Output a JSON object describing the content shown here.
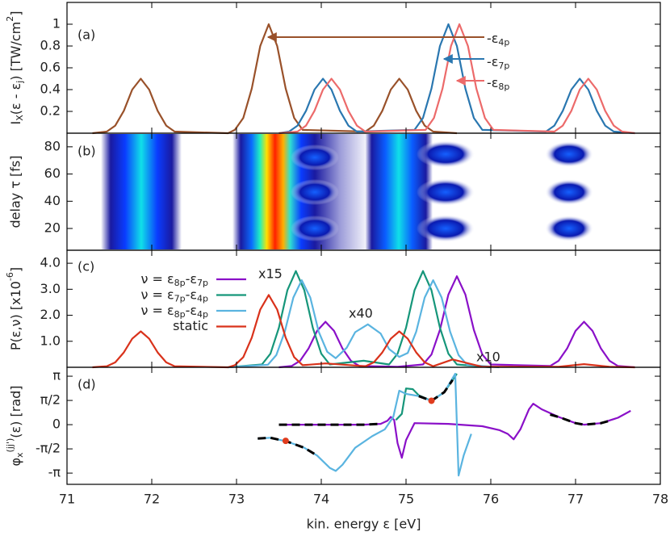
{
  "chart_data": [
    {
      "type": "line",
      "ylabel": [
        {
          "t": "I"
        },
        {
          "sub": "X"
        },
        {
          "t": "(ε - ε"
        },
        {
          "sub": "j"
        },
        {
          "t": ") [TW/cm"
        },
        {
          "sup": "2"
        },
        {
          "t": "]"
        }
      ],
      "xlim": [
        71,
        78
      ],
      "ylim": [
        0,
        1.2
      ],
      "yticks": [
        0.2,
        0.4,
        0.6,
        0.8,
        1
      ],
      "annotations": [
        {
          "text": "(a)",
          "color": "#222222"
        },
        {
          "text": [
            {
              "t": "-ε"
            },
            {
              "sub": "4p"
            }
          ],
          "color": "#99512a"
        },
        {
          "text": [
            {
              "t": "-ε"
            },
            {
              "sub": "7p"
            }
          ],
          "color": "#2a77b0"
        },
        {
          "text": [
            {
              "t": "-ε"
            },
            {
              "sub": "8p"
            }
          ],
          "color": "#ec6a6a"
        }
      ],
      "series": [
        {
          "color": "#99512a",
          "x": [
            71.3,
            71.47,
            71.57,
            71.67,
            71.77,
            71.87,
            71.97,
            72.07,
            72.17,
            72.27,
            72.9,
            72.98,
            73.08,
            73.18,
            73.28,
            73.38,
            73.48,
            73.58,
            73.68,
            73.78,
            74.52,
            74.62,
            74.72,
            74.82,
            74.92,
            75.02,
            75.12,
            75.22,
            75.32,
            75.6
          ],
          "values": [
            0,
            0.015,
            0.07,
            0.205,
            0.4,
            0.5,
            0.4,
            0.205,
            0.07,
            0.015,
            0,
            0.03,
            0.14,
            0.41,
            0.8,
            1,
            0.8,
            0.41,
            0.14,
            0.03,
            0.015,
            0.07,
            0.205,
            0.4,
            0.5,
            0.4,
            0.205,
            0.07,
            0.015,
            0
          ]
        },
        {
          "color": "#2a77b0",
          "x": [
            73.5,
            73.62,
            73.72,
            73.82,
            73.92,
            74.02,
            74.12,
            74.22,
            74.32,
            74.42,
            75.1,
            75.2,
            75.3,
            75.4,
            75.5,
            75.6,
            75.7,
            75.8,
            75.9,
            76.65,
            76.75,
            76.85,
            76.95,
            77.05,
            77.15,
            77.25,
            77.35,
            77.45,
            77.7
          ],
          "values": [
            0,
            0.015,
            0.07,
            0.205,
            0.4,
            0.5,
            0.4,
            0.205,
            0.07,
            0.015,
            0.03,
            0.14,
            0.41,
            0.8,
            1,
            0.8,
            0.41,
            0.14,
            0.03,
            0.015,
            0.07,
            0.205,
            0.4,
            0.5,
            0.4,
            0.205,
            0.07,
            0.015,
            0
          ]
        },
        {
          "color": "#ec6a6a",
          "x": [
            73.5,
            73.72,
            73.82,
            73.92,
            74.02,
            74.12,
            74.22,
            74.32,
            74.42,
            74.52,
            75.23,
            75.33,
            75.43,
            75.53,
            75.63,
            75.73,
            75.83,
            75.93,
            76.03,
            76.75,
            76.85,
            76.95,
            77.05,
            77.15,
            77.25,
            77.35,
            77.45,
            77.55,
            77.7
          ],
          "values": [
            0,
            0.015,
            0.07,
            0.205,
            0.4,
            0.5,
            0.4,
            0.205,
            0.07,
            0.015,
            0.03,
            0.14,
            0.41,
            0.8,
            1,
            0.8,
            0.41,
            0.14,
            0.03,
            0.015,
            0.07,
            0.205,
            0.4,
            0.5,
            0.4,
            0.205,
            0.07,
            0.015,
            0
          ]
        }
      ]
    },
    {
      "type": "heatmap",
      "ylabel": "delay τ [fs]",
      "xlim": [
        71,
        78
      ],
      "ylim": [
        4,
        90
      ],
      "yticks": [
        20,
        40,
        60,
        80
      ],
      "annotations": [
        {
          "text": "(b)",
          "color": "#222222"
        }
      ]
    },
    {
      "type": "line",
      "ylabel": [
        {
          "t": "P(ε,ν) [x10"
        },
        {
          "sup": "-6"
        },
        {
          "t": "]"
        }
      ],
      "xlim": [
        71,
        78
      ],
      "ylim": [
        0,
        4.5
      ],
      "yticks": [
        {
          "value": 1,
          "label": "1.0"
        },
        {
          "value": 2,
          "label": "2.0"
        },
        {
          "value": 3,
          "label": "3.0"
        },
        {
          "value": 4,
          "label": "4.0"
        }
      ],
      "legend": "upper left",
      "annotations": [
        {
          "text": "(c)",
          "color": "#222222"
        },
        {
          "text": "x15",
          "color": "#16967a"
        },
        {
          "text": "x40",
          "color": "#5ab4e0"
        },
        {
          "text": "x10",
          "color": "#8a10c8"
        }
      ],
      "series": [
        {
          "name": [
            {
              "t": "ν = ε"
            },
            {
              "sub": "8p"
            },
            {
              "t": "-ε"
            },
            {
              "sub": "7p"
            }
          ],
          "color": "#8a10c8",
          "x": [
            73.5,
            73.65,
            73.75,
            73.85,
            73.95,
            74.05,
            74.15,
            74.25,
            74.35,
            74.45,
            74.9,
            75.2,
            75.3,
            75.4,
            75.5,
            75.6,
            75.7,
            75.8,
            75.9,
            76.0,
            76.7,
            76.8,
            76.9,
            77.0,
            77.1,
            77.2,
            77.3,
            77.4,
            77.5,
            77.7
          ],
          "values": [
            0,
            0.05,
            0.25,
            0.72,
            1.4,
            1.75,
            1.4,
            0.72,
            0.25,
            0.05,
            0.02,
            0.11,
            0.49,
            1.44,
            2.8,
            3.5,
            2.8,
            1.44,
            0.49,
            0.11,
            0.05,
            0.25,
            0.72,
            1.4,
            1.75,
            1.4,
            0.72,
            0.25,
            0.05,
            0
          ]
        },
        {
          "name": [
            {
              "t": "ν = ε"
            },
            {
              "sub": "7p"
            },
            {
              "t": "-ε"
            },
            {
              "sub": "4p"
            }
          ],
          "color": "#16967a",
          "x": [
            72.9,
            73.3,
            73.4,
            73.5,
            73.6,
            73.7,
            73.8,
            73.9,
            74.0,
            74.1,
            74.5,
            74.8,
            74.9,
            75.0,
            75.1,
            75.2,
            75.3,
            75.4,
            75.5,
            75.6,
            76.0
          ],
          "values": [
            0,
            0.11,
            0.52,
            1.52,
            2.96,
            3.7,
            2.96,
            1.52,
            0.52,
            0.11,
            0.25,
            0.11,
            0.52,
            1.52,
            2.96,
            3.7,
            2.96,
            1.52,
            0.52,
            0.11,
            0
          ]
        },
        {
          "name": [
            {
              "t": "ν = ε"
            },
            {
              "sub": "8p"
            },
            {
              "t": "-ε"
            },
            {
              "sub": "4p"
            }
          ],
          "color": "#5ab4e0",
          "x": [
            72.9,
            73.37,
            73.47,
            73.57,
            73.67,
            73.77,
            73.87,
            73.97,
            74.07,
            74.17,
            74.3,
            74.4,
            74.55,
            74.7,
            74.8,
            74.92,
            75.02,
            75.12,
            75.22,
            75.32,
            75.42,
            75.52,
            75.62,
            75.72,
            76.1
          ],
          "values": [
            0,
            0.1,
            0.47,
            1.37,
            2.68,
            3.35,
            2.68,
            1.37,
            0.6,
            0.35,
            0.75,
            1.35,
            1.65,
            1.3,
            0.7,
            0.4,
            0.55,
            1.37,
            2.68,
            3.35,
            2.68,
            1.37,
            0.47,
            0.1,
            0
          ]
        },
        {
          "name": "static",
          "color": "#d9321b",
          "x": [
            71.3,
            71.47,
            71.57,
            71.67,
            71.77,
            71.87,
            71.97,
            72.07,
            72.17,
            72.27,
            72.9,
            72.98,
            73.08,
            73.18,
            73.28,
            73.38,
            73.48,
            73.58,
            73.68,
            73.78,
            74.05,
            74.52,
            74.62,
            74.72,
            74.82,
            74.92,
            75.02,
            75.12,
            75.22,
            75.32,
            75.55,
            75.9,
            76.8,
            77.1,
            77.4,
            77.7
          ],
          "values": [
            0,
            0.04,
            0.19,
            0.57,
            1.1,
            1.38,
            1.1,
            0.57,
            0.19,
            0.04,
            0,
            0.08,
            0.39,
            1.14,
            2.22,
            2.78,
            2.22,
            1.14,
            0.39,
            0.08,
            0.15,
            0.04,
            0.19,
            0.57,
            1.1,
            1.38,
            1.1,
            0.57,
            0.19,
            0.04,
            0.3,
            0.02,
            0.02,
            0.12,
            0.02,
            0
          ]
        }
      ]
    },
    {
      "type": "line",
      "ylabel": [
        {
          "t": "φ"
        },
        {
          "sub": "x"
        },
        {
          "sup": "(jj')"
        },
        {
          "t": "(ε) [rad]"
        }
      ],
      "xlabel": "kin. energy ε [eV]",
      "xlim": [
        71,
        78
      ],
      "xticks": [
        71,
        72,
        73,
        74,
        75,
        76,
        77,
        78
      ],
      "ylim": [
        -3.87,
        3.72
      ],
      "yticks": [
        {
          "value": -3.1416,
          "label": "-π"
        },
        {
          "value": -1.5708,
          "label": "-π/2"
        },
        0,
        {
          "value": 1.5708,
          "label": "π/2"
        },
        {
          "value": 3.1416,
          "label": "π"
        }
      ],
      "annotations": [
        {
          "text": "(d)",
          "color": "#222222"
        }
      ],
      "series": [
        {
          "color": "#8a10c8",
          "x": [
            73.5,
            74.0,
            74.5,
            74.7,
            74.78,
            74.82,
            74.86,
            74.9,
            74.95,
            75.0,
            75.1,
            75.5,
            75.9,
            76.1,
            76.2,
            76.27,
            76.35,
            76.45,
            76.5,
            76.6,
            76.8,
            77.0,
            77.1,
            77.3,
            77.5,
            77.65
          ],
          "values": [
            0,
            0,
            0,
            0.05,
            0.25,
            0.5,
            0.3,
            -1.2,
            -2.15,
            -1.0,
            0.1,
            0.05,
            -0.1,
            -0.35,
            -0.6,
            -0.95,
            -0.3,
            1.0,
            1.36,
            1.0,
            0.5,
            0.1,
            0,
            0.1,
            0.45,
            0.9
          ]
        },
        {
          "color": "#16967a",
          "x": [
            74.88,
            74.95,
            75.0,
            75.08,
            75.15,
            75.3,
            75.45,
            75.6
          ],
          "values": [
            0.3,
            0.7,
            2.35,
            2.3,
            1.9,
            1.55,
            2.1,
            3.3
          ]
        },
        {
          "color": "#5ab4e0",
          "x": [
            73.25,
            73.4,
            73.6,
            73.8,
            73.95,
            74.1,
            74.17,
            74.25,
            74.4,
            74.6,
            74.75,
            74.85,
            74.92,
            75.0,
            75.15,
            75.3,
            75.45,
            75.58,
            75.62,
            75.68,
            75.77
          ],
          "values": [
            -0.9,
            -0.85,
            -1.1,
            -1.5,
            -2.0,
            -2.8,
            -3.0,
            -2.6,
            -1.5,
            -0.75,
            -0.3,
            0.5,
            2.2,
            2.0,
            1.85,
            1.55,
            2.1,
            3.3,
            -3.3,
            -2.0,
            -0.6
          ]
        },
        {
          "color": "#000000",
          "dash": true,
          "x": [
            73.25,
            73.4,
            73.6,
            73.8,
            73.95,
            74.0,
            73.5,
            74.0,
            74.5,
            74.7,
            74.7,
            75.15,
            75.3,
            75.45,
            75.55,
            75.6,
            76.7,
            76.8,
            77.0,
            77.1,
            77.3,
            77.4
          ],
          "values": [
            -0.9,
            -0.85,
            -1.1,
            -1.5,
            -2.0,
            null,
            0,
            0,
            0,
            0.05,
            null,
            1.85,
            1.55,
            2.1,
            2.9,
            null,
            0.65,
            0.5,
            0.1,
            0,
            0.1,
            0.25
          ]
        }
      ],
      "points": {
        "color": "#e03c1e",
        "x": [
          73.58,
          75.3
        ],
        "values": [
          -1.05,
          1.55
        ]
      }
    }
  ]
}
